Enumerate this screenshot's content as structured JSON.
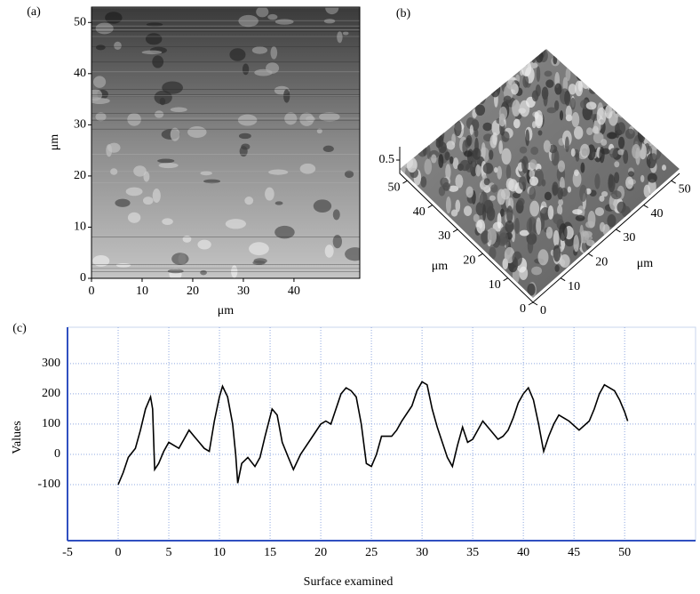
{
  "chart_data": [
    {
      "type": "image",
      "label": "(a)",
      "xlabel": "μm",
      "ylabel": "μm",
      "xlim": [
        0,
        53
      ],
      "ylim": [
        0,
        53
      ],
      "xticks": [
        0,
        10,
        20,
        30,
        40
      ],
      "yticks": [
        0,
        10,
        20,
        30,
        40,
        50
      ]
    },
    {
      "type": "surface3d",
      "label": "(b)",
      "xlabel": "μm",
      "ylabel": "μm",
      "xlim": [
        0,
        53
      ],
      "ylim": [
        0,
        53
      ],
      "zlim": [
        0,
        1
      ],
      "xticks": [
        0,
        10,
        20,
        30,
        40,
        50
      ],
      "yticks": [
        0,
        10,
        20,
        30,
        40,
        50
      ],
      "zticks": [
        0.5
      ]
    },
    {
      "type": "line",
      "label": "(c)",
      "xlabel": "Surface examined",
      "ylabel": "Values",
      "color": "#000000",
      "grid": true,
      "xlim": [
        -5,
        57
      ],
      "ylim": [
        -285,
        420
      ],
      "xticks": [
        -5,
        0,
        5,
        10,
        15,
        20,
        25,
        30,
        35,
        40,
        45,
        50
      ],
      "yticks": [
        -100,
        0,
        100,
        200,
        300
      ],
      "x": [
        0,
        0.5,
        1,
        1.7,
        2.2,
        2.7,
        3.2,
        3.4,
        3.6,
        4,
        4.5,
        5,
        5.5,
        6,
        6.5,
        7,
        7.5,
        8,
        8.5,
        9,
        9.5,
        10,
        10.3,
        10.8,
        11.3,
        11.6,
        11.8,
        12.2,
        12.8,
        13.5,
        14,
        14.5,
        15.2,
        15.7,
        16.2,
        16.8,
        17.3,
        18,
        19,
        20,
        20.5,
        21,
        21.5,
        22,
        22.5,
        23,
        23.5,
        24,
        24.5,
        25,
        25.5,
        26,
        27,
        27.5,
        28,
        29,
        29.5,
        30,
        30.5,
        31,
        31.5,
        32,
        32.5,
        33,
        33.5,
        34,
        34.5,
        35,
        36,
        37,
        37.5,
        38,
        38.5,
        39,
        39.5,
        40,
        40.5,
        41,
        41.5,
        42,
        42.5,
        43,
        43.5,
        44.5,
        45.5,
        46.5,
        47,
        47.5,
        48,
        49,
        49.5,
        50,
        50.3
      ],
      "values": [
        -100,
        -60,
        -10,
        20,
        80,
        150,
        190,
        150,
        -50,
        -30,
        10,
        40,
        30,
        20,
        50,
        80,
        60,
        40,
        20,
        10,
        110,
        190,
        225,
        190,
        100,
        0,
        -95,
        -30,
        -10,
        -40,
        -10,
        60,
        150,
        130,
        40,
        -10,
        -50,
        0,
        50,
        100,
        110,
        100,
        150,
        200,
        220,
        210,
        190,
        100,
        -30,
        -40,
        0,
        60,
        60,
        80,
        110,
        160,
        210,
        240,
        230,
        150,
        90,
        40,
        -10,
        -40,
        30,
        90,
        40,
        50,
        110,
        70,
        50,
        60,
        80,
        120,
        170,
        200,
        220,
        180,
        100,
        10,
        60,
        100,
        130,
        110,
        80,
        110,
        150,
        200,
        230,
        210,
        180,
        140,
        110
      ]
    }
  ]
}
